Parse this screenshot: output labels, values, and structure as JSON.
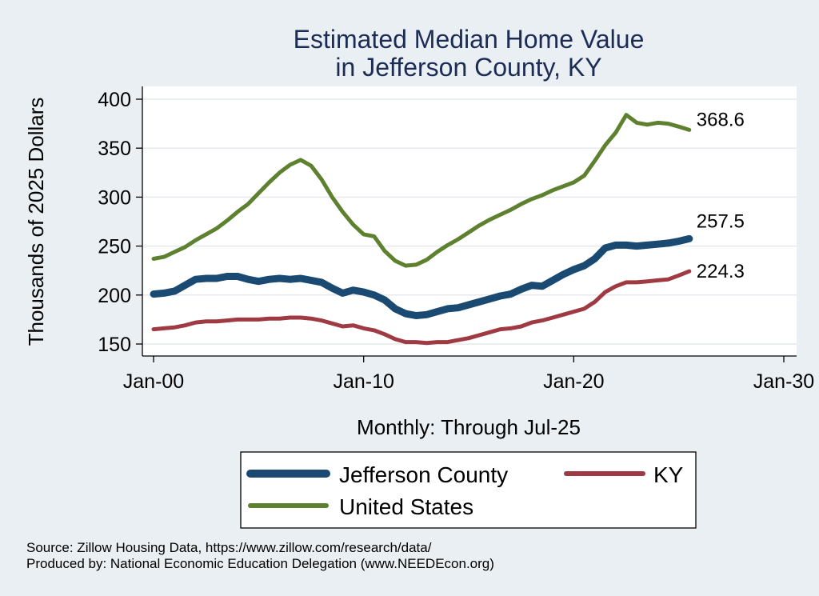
{
  "chart_data": {
    "type": "line",
    "title": [
      "Estimated Median Home Value",
      "in Jefferson County, KY"
    ],
    "ylabel": "Thousands of 2025 Dollars",
    "xlabel": "Monthly: Through Jul-25",
    "x_ticks": [
      {
        "label": "Jan-00",
        "year": 2000
      },
      {
        "label": "Jan-10",
        "year": 2010
      },
      {
        "label": "Jan-20",
        "year": 2020
      },
      {
        "label": "Jan-30",
        "year": 2030
      }
    ],
    "y_ticks": [
      150,
      200,
      250,
      300,
      350,
      400
    ],
    "xlim": [
      2000,
      2030
    ],
    "ylim": [
      140,
      410
    ],
    "grid": "horizontal",
    "legend_position": "bottom",
    "series": [
      {
        "name": "Jefferson County",
        "color": "#1a4a72",
        "end_label": "257.5",
        "points": [
          [
            2000.0,
            201
          ],
          [
            2000.5,
            202
          ],
          [
            2001.0,
            204
          ],
          [
            2001.5,
            210
          ],
          [
            2002.0,
            216
          ],
          [
            2002.5,
            217
          ],
          [
            2003.0,
            217
          ],
          [
            2003.5,
            219
          ],
          [
            2004.0,
            219
          ],
          [
            2004.5,
            216
          ],
          [
            2005.0,
            214
          ],
          [
            2005.5,
            216
          ],
          [
            2006.0,
            217
          ],
          [
            2006.5,
            216
          ],
          [
            2007.0,
            217
          ],
          [
            2007.5,
            215
          ],
          [
            2008.0,
            213
          ],
          [
            2008.5,
            207
          ],
          [
            2009.0,
            202
          ],
          [
            2009.5,
            205
          ],
          [
            2010.0,
            203
          ],
          [
            2010.5,
            200
          ],
          [
            2011.0,
            195
          ],
          [
            2011.5,
            186
          ],
          [
            2012.0,
            181
          ],
          [
            2012.5,
            179
          ],
          [
            2013.0,
            180
          ],
          [
            2013.5,
            183
          ],
          [
            2014.0,
            186
          ],
          [
            2014.5,
            187
          ],
          [
            2015.0,
            190
          ],
          [
            2015.5,
            193
          ],
          [
            2016.0,
            196
          ],
          [
            2016.5,
            199
          ],
          [
            2017.0,
            201
          ],
          [
            2017.5,
            206
          ],
          [
            2018.0,
            210
          ],
          [
            2018.5,
            209
          ],
          [
            2019.0,
            215
          ],
          [
            2019.5,
            221
          ],
          [
            2020.0,
            226
          ],
          [
            2020.5,
            230
          ],
          [
            2021.0,
            237
          ],
          [
            2021.5,
            248
          ],
          [
            2022.0,
            251
          ],
          [
            2022.5,
            251
          ],
          [
            2023.0,
            250
          ],
          [
            2023.5,
            251
          ],
          [
            2024.0,
            252
          ],
          [
            2024.5,
            253
          ],
          [
            2025.0,
            255
          ],
          [
            2025.5,
            257.5
          ]
        ]
      },
      {
        "name": "KY",
        "color": "#a03a42",
        "end_label": "224.3",
        "points": [
          [
            2000.0,
            165
          ],
          [
            2000.5,
            166
          ],
          [
            2001.0,
            167
          ],
          [
            2001.5,
            169
          ],
          [
            2002.0,
            172
          ],
          [
            2002.5,
            173
          ],
          [
            2003.0,
            173
          ],
          [
            2003.5,
            174
          ],
          [
            2004.0,
            175
          ],
          [
            2004.5,
            175
          ],
          [
            2005.0,
            175
          ],
          [
            2005.5,
            176
          ],
          [
            2006.0,
            176
          ],
          [
            2006.5,
            177
          ],
          [
            2007.0,
            177
          ],
          [
            2007.5,
            176
          ],
          [
            2008.0,
            174
          ],
          [
            2008.5,
            171
          ],
          [
            2009.0,
            168
          ],
          [
            2009.5,
            169
          ],
          [
            2010.0,
            166
          ],
          [
            2010.5,
            164
          ],
          [
            2011.0,
            160
          ],
          [
            2011.5,
            155
          ],
          [
            2012.0,
            152
          ],
          [
            2012.5,
            152
          ],
          [
            2013.0,
            151
          ],
          [
            2013.5,
            152
          ],
          [
            2014.0,
            152
          ],
          [
            2014.5,
            154
          ],
          [
            2015.0,
            156
          ],
          [
            2015.5,
            159
          ],
          [
            2016.0,
            162
          ],
          [
            2016.5,
            165
          ],
          [
            2017.0,
            166
          ],
          [
            2017.5,
            168
          ],
          [
            2018.0,
            172
          ],
          [
            2018.5,
            174
          ],
          [
            2019.0,
            177
          ],
          [
            2019.5,
            180
          ],
          [
            2020.0,
            183
          ],
          [
            2020.5,
            186
          ],
          [
            2021.0,
            193
          ],
          [
            2021.5,
            203
          ],
          [
            2022.0,
            209
          ],
          [
            2022.5,
            213
          ],
          [
            2023.0,
            213
          ],
          [
            2023.5,
            214
          ],
          [
            2024.0,
            215
          ],
          [
            2024.5,
            216
          ],
          [
            2025.0,
            220
          ],
          [
            2025.5,
            224.3
          ]
        ]
      },
      {
        "name": "United States",
        "color": "#5e8130",
        "end_label": "368.6",
        "points": [
          [
            2000.0,
            237
          ],
          [
            2000.5,
            239
          ],
          [
            2001.0,
            244
          ],
          [
            2001.5,
            249
          ],
          [
            2002.0,
            256
          ],
          [
            2002.5,
            262
          ],
          [
            2003.0,
            268
          ],
          [
            2003.5,
            276
          ],
          [
            2004.0,
            285
          ],
          [
            2004.5,
            293
          ],
          [
            2005.0,
            304
          ],
          [
            2005.5,
            315
          ],
          [
            2006.0,
            325
          ],
          [
            2006.5,
            333
          ],
          [
            2007.0,
            338
          ],
          [
            2007.5,
            332
          ],
          [
            2008.0,
            318
          ],
          [
            2008.5,
            300
          ],
          [
            2009.0,
            285
          ],
          [
            2009.5,
            272
          ],
          [
            2010.0,
            262
          ],
          [
            2010.5,
            260
          ],
          [
            2011.0,
            245
          ],
          [
            2011.5,
            235
          ],
          [
            2012.0,
            230
          ],
          [
            2012.5,
            231
          ],
          [
            2013.0,
            236
          ],
          [
            2013.5,
            244
          ],
          [
            2014.0,
            251
          ],
          [
            2014.5,
            257
          ],
          [
            2015.0,
            264
          ],
          [
            2015.5,
            271
          ],
          [
            2016.0,
            277
          ],
          [
            2016.5,
            282
          ],
          [
            2017.0,
            287
          ],
          [
            2017.5,
            293
          ],
          [
            2018.0,
            298
          ],
          [
            2018.5,
            302
          ],
          [
            2019.0,
            307
          ],
          [
            2019.5,
            311
          ],
          [
            2020.0,
            315
          ],
          [
            2020.5,
            322
          ],
          [
            2021.0,
            337
          ],
          [
            2021.5,
            353
          ],
          [
            2022.0,
            366
          ],
          [
            2022.5,
            384
          ],
          [
            2023.0,
            376
          ],
          [
            2023.5,
            374
          ],
          [
            2024.0,
            376
          ],
          [
            2024.5,
            375
          ],
          [
            2025.0,
            372
          ],
          [
            2025.5,
            368.6
          ]
        ]
      }
    ]
  },
  "legend": {
    "items": [
      {
        "name": "Jefferson County",
        "color": "#1a4a72"
      },
      {
        "name": "KY",
        "color": "#a03a42"
      },
      {
        "name": "United States",
        "color": "#5e8130"
      }
    ]
  },
  "source": {
    "line1": "Source: Zillow Housing Data, https://www.zillow.com/research/data/",
    "line2": "Produced by: National Economic Education Delegation (www.NEEDEcon.org)"
  }
}
